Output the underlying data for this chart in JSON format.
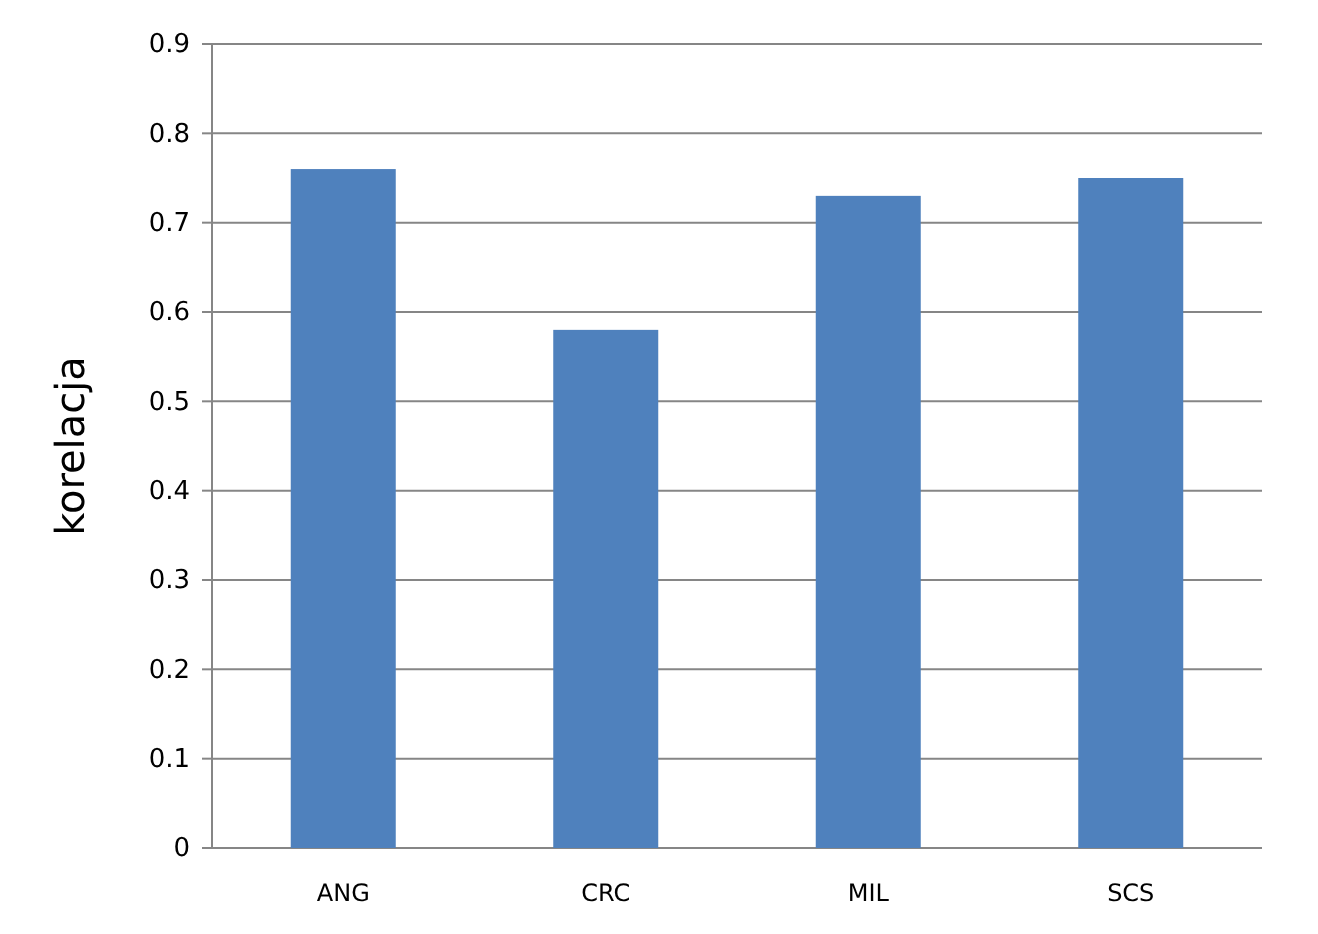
{
  "chart_data": {
    "type": "bar",
    "ylabel": "korelacja",
    "categories": [
      "ANG",
      "CRC",
      "MIL",
      "SCS"
    ],
    "values": [
      0.76,
      0.58,
      0.73,
      0.75
    ],
    "color": "#4f81bd",
    "ylim": [
      0,
      0.9
    ],
    "yticks": [
      0,
      0.1,
      0.2,
      0.3,
      0.4,
      0.5,
      0.6,
      0.7,
      0.8,
      0.9
    ],
    "grid": "y"
  }
}
